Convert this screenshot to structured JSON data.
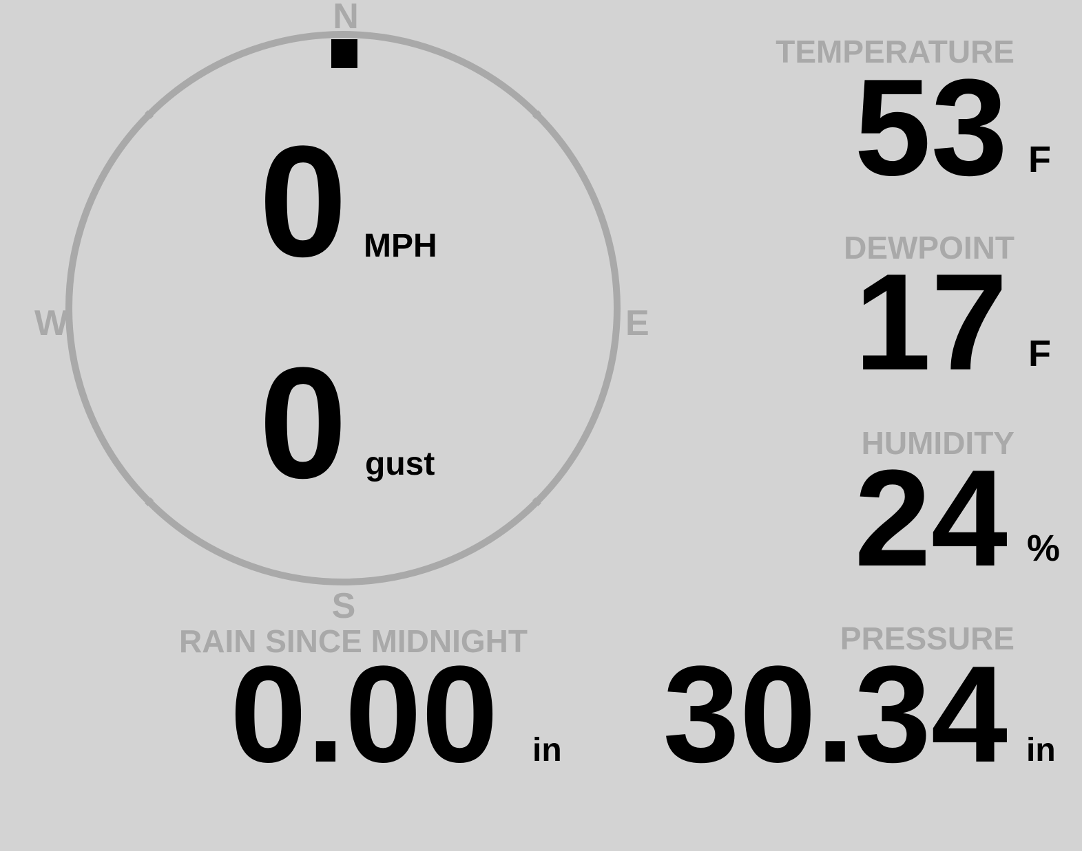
{
  "compass": {
    "north": "N",
    "south": "S",
    "east": "E",
    "west": "W",
    "wind_direction_deg": 0,
    "ring_color": "#a9a9a9",
    "needle_color": "#000000"
  },
  "wind": {
    "speed": "0",
    "speed_unit": "MPH",
    "gust": "0",
    "gust_unit": "gust"
  },
  "temperature": {
    "label": "TEMPERATURE",
    "value": "53",
    "unit": "F"
  },
  "dewpoint": {
    "label": "DEWPOINT",
    "value": "17",
    "unit": "F"
  },
  "humidity": {
    "label": "HUMIDITY",
    "value": "24",
    "unit": "%"
  },
  "rain": {
    "label": "RAIN SINCE MIDNIGHT",
    "value": "0.00",
    "unit": "in"
  },
  "pressure": {
    "label": "PRESSURE",
    "value": "30.34",
    "unit": "in"
  },
  "colors": {
    "background": "#d3d3d3",
    "label": "#a9a9a9",
    "value": "#000000"
  }
}
